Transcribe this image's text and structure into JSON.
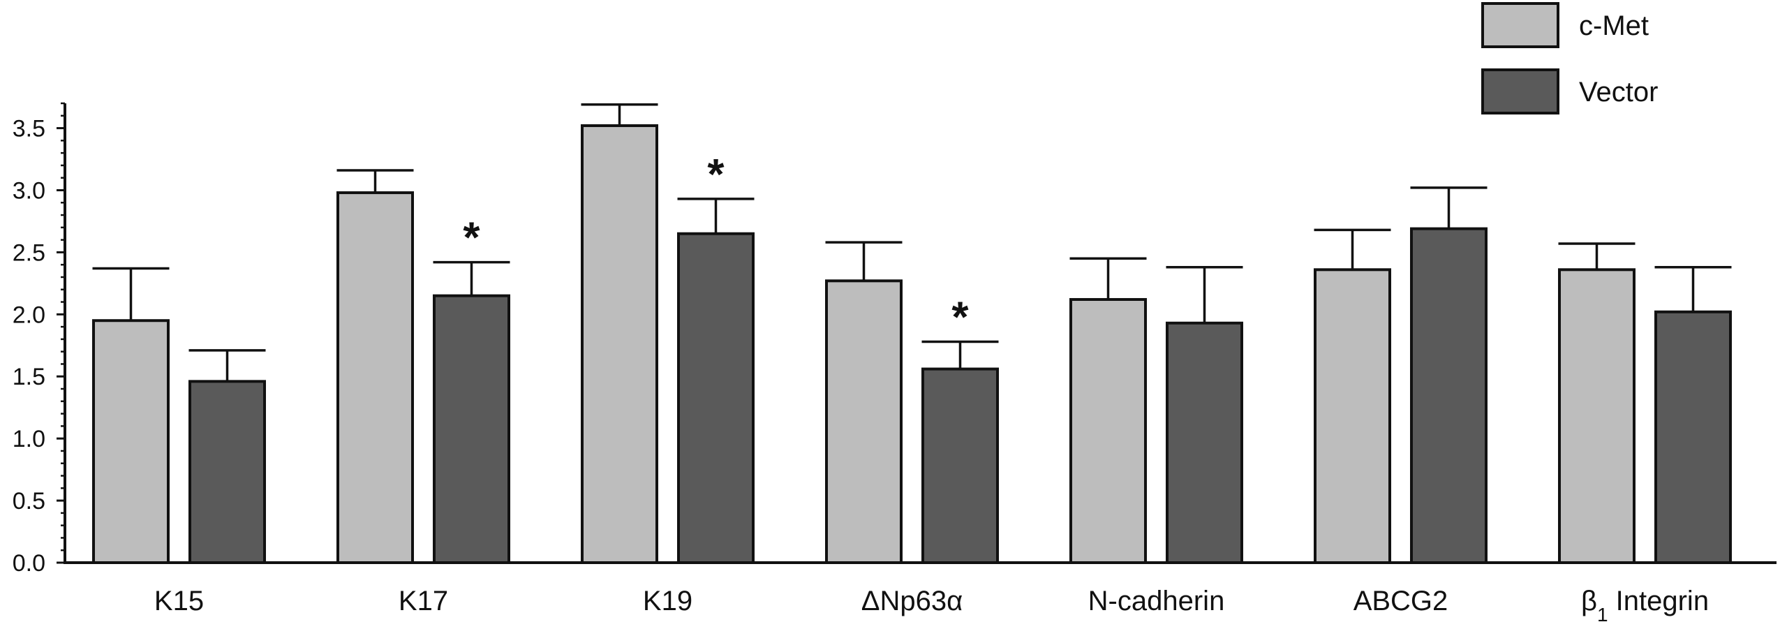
{
  "chart_data": {
    "type": "bar",
    "title": "",
    "xlabel": "",
    "ylabel": "",
    "ylim": [
      0,
      3.7
    ],
    "yticks": [
      "0.0",
      "0.5",
      "1.0",
      "1.5",
      "2.0",
      "2.5",
      "3.0",
      "3.5"
    ],
    "y_minor_step": 0.1,
    "categories": [
      "K15",
      "K17",
      "K19",
      "ΔNp63α",
      "N-cadherin",
      "ABCG2",
      "β1 Integrin"
    ],
    "category_label_parts": [
      [
        "K15"
      ],
      [
        "K17"
      ],
      [
        "K19"
      ],
      [
        "ΔNp63α"
      ],
      [
        "N-cadherin"
      ],
      [
        "ABCG2"
      ],
      [
        "β",
        "1",
        " Integrin"
      ]
    ],
    "series": [
      {
        "name": "c-Met",
        "color": "#bdbdbd",
        "values": [
          1.95,
          2.98,
          3.52,
          2.27,
          2.12,
          2.36,
          2.36
        ],
        "error": [
          0.42,
          0.18,
          0.17,
          0.31,
          0.33,
          0.32,
          0.21
        ]
      },
      {
        "name": "Vector",
        "color": "#5a5a5a",
        "values": [
          1.46,
          2.15,
          2.65,
          1.56,
          1.93,
          2.69,
          2.02
        ],
        "error": [
          0.25,
          0.27,
          0.28,
          0.22,
          0.45,
          0.33,
          0.36
        ]
      }
    ],
    "significance": [
      {
        "category": "K17",
        "series": "Vector",
        "mark": "*"
      },
      {
        "category": "K19",
        "series": "Vector",
        "mark": "*"
      },
      {
        "category": "ΔNp63α",
        "series": "Vector",
        "mark": "*"
      }
    ],
    "legend": {
      "placement": "top-right",
      "entries": [
        {
          "label": "c-Met",
          "color": "#bdbdbd"
        },
        {
          "label": "Vector",
          "color": "#5a5a5a"
        }
      ]
    },
    "grid": false
  }
}
